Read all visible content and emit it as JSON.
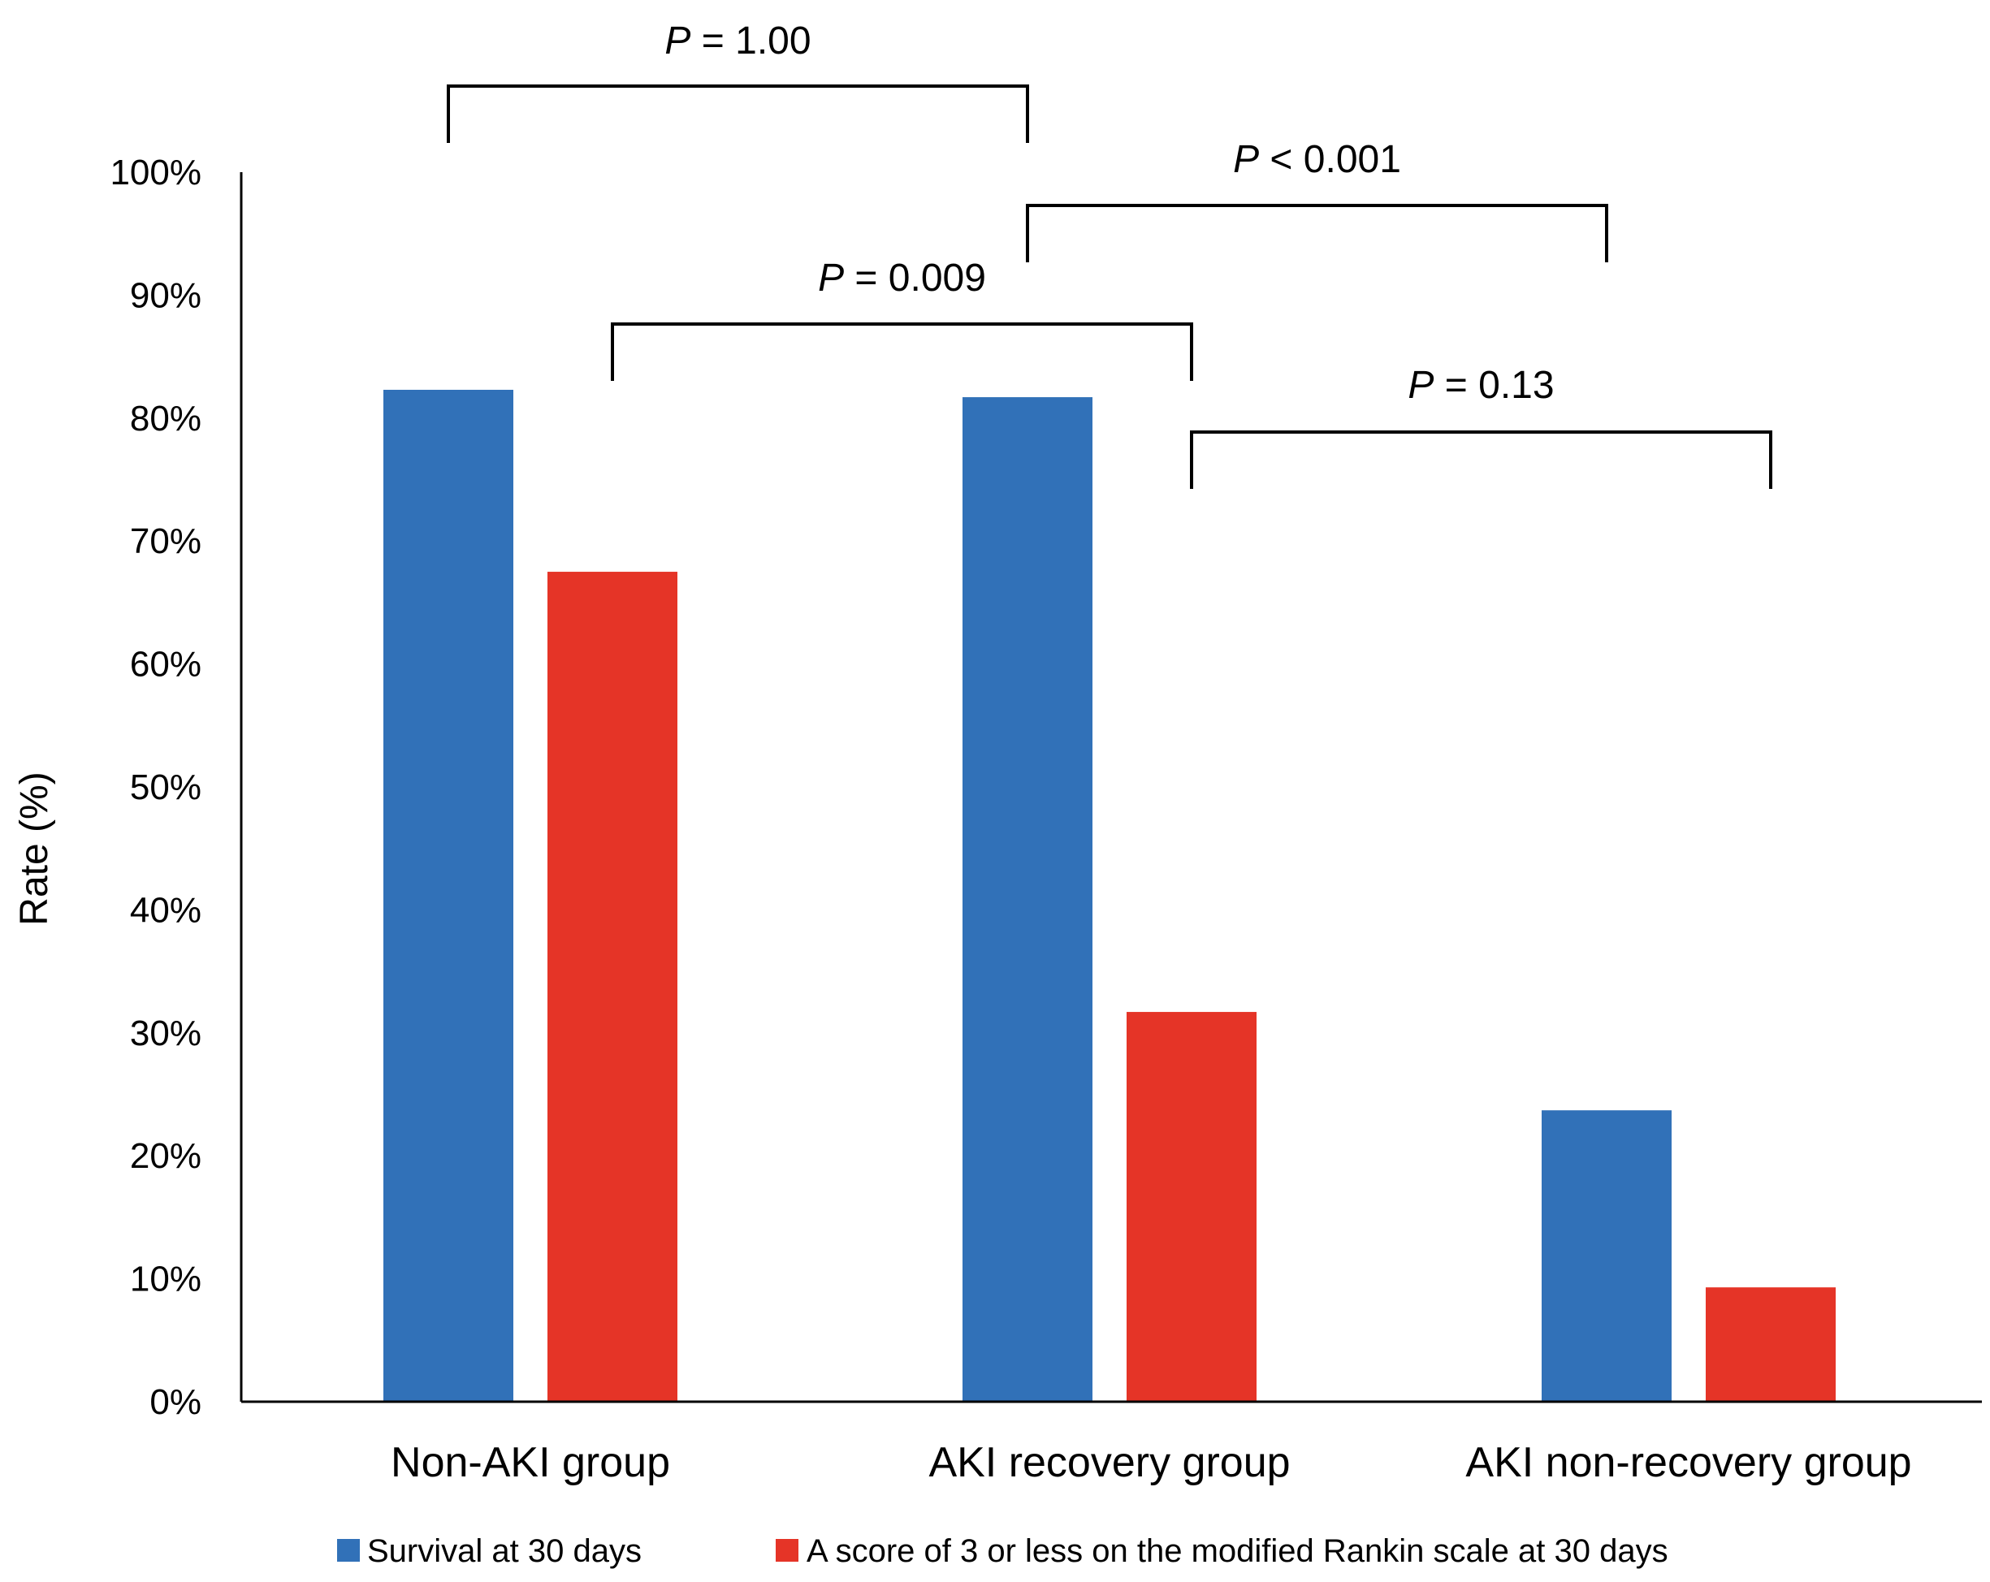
{
  "chart_data": {
    "type": "bar",
    "title": "",
    "xlabel": "",
    "ylabel": "Rate (%)",
    "ylim": [
      0,
      100
    ],
    "yticks": [
      "0%",
      "10%",
      "20%",
      "30%",
      "40%",
      "50%",
      "60%",
      "70%",
      "80%",
      "90%",
      "100%"
    ],
    "grid": false,
    "legend_position": "bottom",
    "categories": [
      "Non-AKI group",
      "AKI recovery group",
      "AKI non-recovery group"
    ],
    "series": [
      {
        "name": "Survival at 30 days",
        "color": "#3171b8",
        "values": [
          82.3,
          81.7,
          23.7
        ]
      },
      {
        "name": "A score of 3 or less on the modified Rankin scale at 30 days",
        "color": "#e53427",
        "values": [
          67.5,
          31.7,
          9.3
        ]
      }
    ],
    "comparisons": [
      {
        "p_symbol": "P",
        "p_text": " = 1.00",
        "from": {
          "category": 0,
          "series": 0
        },
        "to": {
          "category": 1,
          "series": 0
        }
      },
      {
        "p_symbol": "P",
        "p_text": " < 0.001",
        "from": {
          "category": 1,
          "series": 0
        },
        "to": {
          "category": 2,
          "series": 0
        }
      },
      {
        "p_symbol": "P",
        "p_text": " = 0.009",
        "from": {
          "category": 0,
          "series": 1
        },
        "to": {
          "category": 1,
          "series": 1
        }
      },
      {
        "p_symbol": "P",
        "p_text": " = 0.13",
        "from": {
          "category": 1,
          "series": 1
        },
        "to": {
          "category": 2,
          "series": 1
        }
      }
    ]
  }
}
